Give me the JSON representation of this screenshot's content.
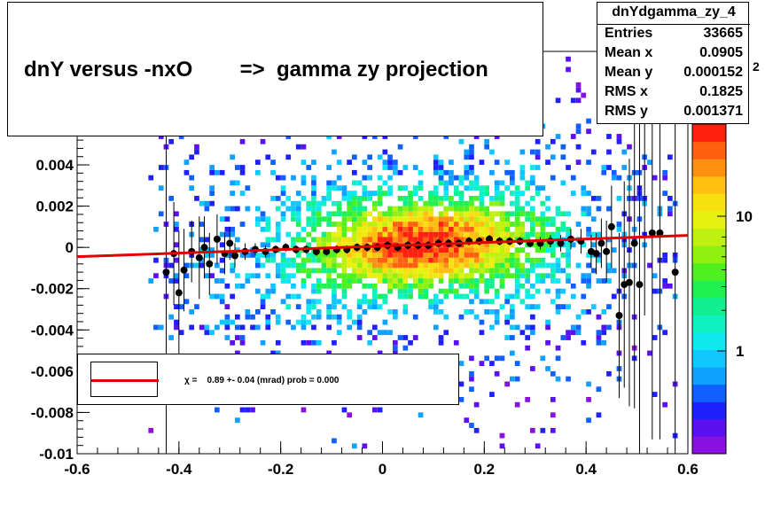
{
  "chart_data": {
    "type": "heatmap",
    "title": "dnY versus -nxO        =>  gamma zy projection",
    "histogram_name": "dnYdgamma_zy_4",
    "stats": [
      {
        "label": "Entries",
        "value": "33665"
      },
      {
        "label": "Mean x",
        "value": "0.0905"
      },
      {
        "label": "Mean y",
        "value": "0.000152"
      },
      {
        "label": "RMS x",
        "value": "0.1825"
      },
      {
        "label": "RMS y",
        "value": "0.001371"
      }
    ],
    "xlim": [
      -0.6,
      0.6
    ],
    "ylim": [
      -0.01,
      0.0095
    ],
    "x_ticks": [
      "-0.6",
      "-0.4",
      "-0.2",
      "0",
      "0.2",
      "0.4",
      "0.6"
    ],
    "y_ticks": [
      "-0.01",
      "-0.008",
      "-0.006",
      "-0.004",
      "-0.002",
      "0",
      "0.002",
      "0.004"
    ],
    "z_scale": "log",
    "z_ticks": [
      "1",
      "10"
    ],
    "z_exponent_label": "2",
    "colors": {
      "fit_line": "#e00000",
      "profile_points": "#000000"
    },
    "profile_points": [
      {
        "x": -0.425,
        "y": -0.0012,
        "err": 0.0095
      },
      {
        "x": -0.41,
        "y": -0.0003,
        "err": 0.0025
      },
      {
        "x": -0.4,
        "y": -0.0022,
        "err": 0.003
      },
      {
        "x": -0.39,
        "y": -0.0011,
        "err": 0.002
      },
      {
        "x": -0.375,
        "y": -0.0002,
        "err": 0.0015
      },
      {
        "x": -0.36,
        "y": -0.0005,
        "err": 0.002
      },
      {
        "x": -0.35,
        "y": 0.0,
        "err": 0.0015
      },
      {
        "x": -0.34,
        "y": -0.0008,
        "err": 0.0015
      },
      {
        "x": -0.325,
        "y": 0.0004,
        "err": 0.0012
      },
      {
        "x": -0.31,
        "y": -0.0003,
        "err": 0.001
      },
      {
        "x": -0.3,
        "y": 0.0002,
        "err": 0.0008
      },
      {
        "x": -0.29,
        "y": -0.0004,
        "err": 0.0006
      },
      {
        "x": -0.27,
        "y": -0.0002,
        "err": 0.0004
      },
      {
        "x": -0.25,
        "y": -0.0001,
        "err": 0.0003
      },
      {
        "x": -0.23,
        "y": -0.0002,
        "err": 0.0003
      },
      {
        "x": -0.21,
        "y": -0.0001,
        "err": 0.0002
      },
      {
        "x": -0.19,
        "y": 0.0,
        "err": 0.0002
      },
      {
        "x": -0.17,
        "y": -0.0001,
        "err": 0.0002
      },
      {
        "x": -0.15,
        "y": -0.0001,
        "err": 0.0002
      },
      {
        "x": -0.13,
        "y": -0.0002,
        "err": 0.0002
      },
      {
        "x": -0.11,
        "y": -0.0002,
        "err": 0.0002
      },
      {
        "x": -0.09,
        "y": -0.0001,
        "err": 0.0002
      },
      {
        "x": -0.07,
        "y": -0.0001,
        "err": 0.0002
      },
      {
        "x": -0.05,
        "y": 0.0,
        "err": 0.0002
      },
      {
        "x": -0.03,
        "y": 0.0,
        "err": 0.0002
      },
      {
        "x": -0.01,
        "y": 0.0,
        "err": 0.0002
      },
      {
        "x": 0.01,
        "y": 0.0001,
        "err": 0.0002
      },
      {
        "x": 0.03,
        "y": 0.0,
        "err": 0.0002
      },
      {
        "x": 0.05,
        "y": 0.0001,
        "err": 0.0002
      },
      {
        "x": 0.07,
        "y": 0.0001,
        "err": 0.0002
      },
      {
        "x": 0.09,
        "y": 0.0001,
        "err": 0.0002
      },
      {
        "x": 0.11,
        "y": 0.0002,
        "err": 0.0002
      },
      {
        "x": 0.13,
        "y": 0.0002,
        "err": 0.0002
      },
      {
        "x": 0.15,
        "y": 0.0002,
        "err": 0.0002
      },
      {
        "x": 0.17,
        "y": 0.0003,
        "err": 0.0002
      },
      {
        "x": 0.19,
        "y": 0.0003,
        "err": 0.0002
      },
      {
        "x": 0.21,
        "y": 0.0004,
        "err": 0.0002
      },
      {
        "x": 0.23,
        "y": 0.0003,
        "err": 0.0002
      },
      {
        "x": 0.25,
        "y": 0.0003,
        "err": 0.0002
      },
      {
        "x": 0.27,
        "y": 0.0003,
        "err": 0.0002
      },
      {
        "x": 0.29,
        "y": 0.0002,
        "err": 0.0002
      },
      {
        "x": 0.31,
        "y": 0.0002,
        "err": 0.0003
      },
      {
        "x": 0.33,
        "y": 0.0003,
        "err": 0.0003
      },
      {
        "x": 0.35,
        "y": 0.0002,
        "err": 0.0004
      },
      {
        "x": 0.37,
        "y": 0.0004,
        "err": 0.0005
      },
      {
        "x": 0.39,
        "y": 0.0003,
        "err": 0.0006
      },
      {
        "x": 0.41,
        "y": -0.0002,
        "err": 0.0008
      },
      {
        "x": 0.42,
        "y": -0.0003,
        "err": 0.001
      },
      {
        "x": 0.43,
        "y": 0.0002,
        "err": 0.0012
      },
      {
        "x": 0.44,
        "y": -0.0002,
        "err": 0.0015
      },
      {
        "x": 0.45,
        "y": 0.001,
        "err": 0.002
      },
      {
        "x": 0.465,
        "y": -0.0033,
        "err": 0.004
      },
      {
        "x": 0.475,
        "y": -0.0018,
        "err": 0.005
      },
      {
        "x": 0.485,
        "y": -0.0017,
        "err": 0.006
      },
      {
        "x": 0.495,
        "y": 0.0002,
        "err": 0.008
      },
      {
        "x": 0.505,
        "y": -0.0018,
        "err": 0.01
      },
      {
        "x": 0.515,
        "y": 0.0067,
        "err": 0.01
      },
      {
        "x": 0.53,
        "y": 0.0007,
        "err": 0.01
      },
      {
        "x": 0.545,
        "y": 0.0007,
        "err": 0.01
      },
      {
        "x": 0.575,
        "y": -0.0012,
        "err": 0.01
      }
    ],
    "fit_line": {
      "x": [
        -0.6,
        0.6
      ],
      "y": [
        -0.00045,
        0.00058
      ]
    },
    "legend": {
      "entry": "χ =    0.89 +- 0.04 (mrad) prob = 0.000",
      "placement": "bottom-left"
    }
  }
}
